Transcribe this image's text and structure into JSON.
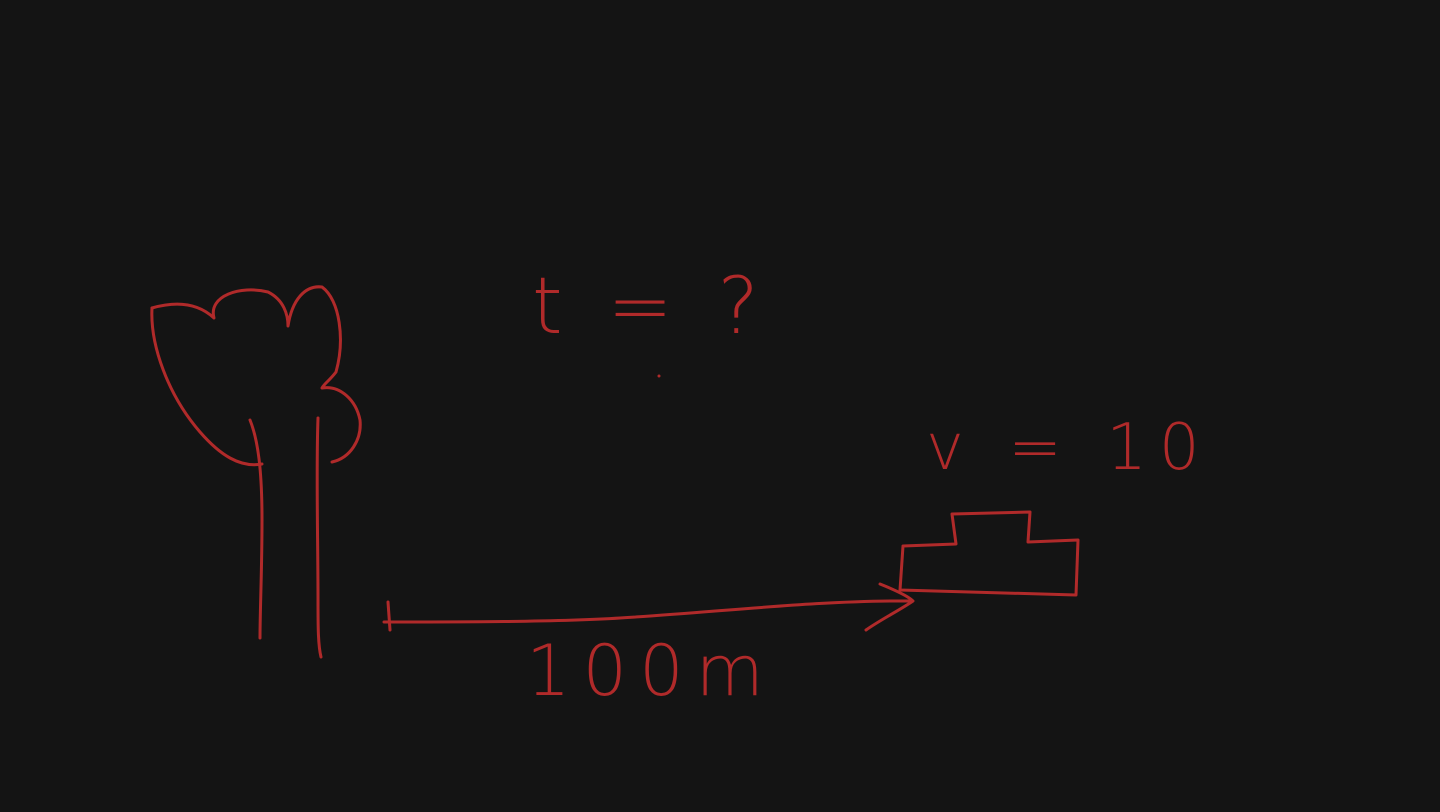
{
  "annotations": {
    "time": "t = ?",
    "velocity": "v = 10",
    "distance": "100m"
  },
  "colors": {
    "background": "#141414",
    "ink": "#b02a2a"
  }
}
